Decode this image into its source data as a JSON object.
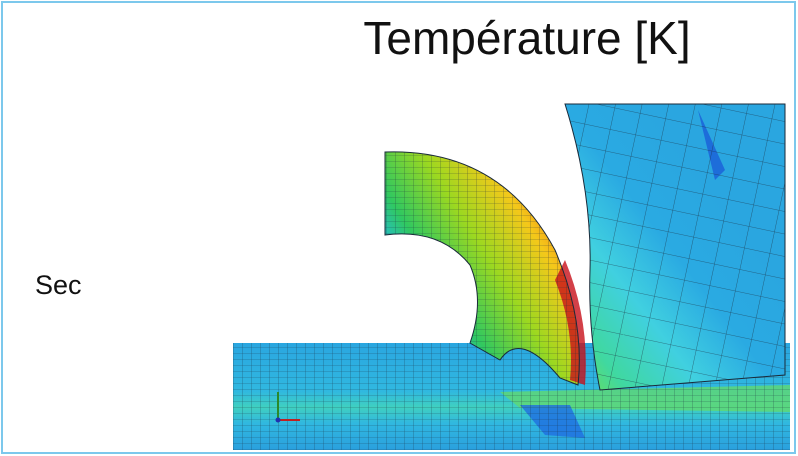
{
  "title": "Température [K]",
  "label": "Sec"
}
